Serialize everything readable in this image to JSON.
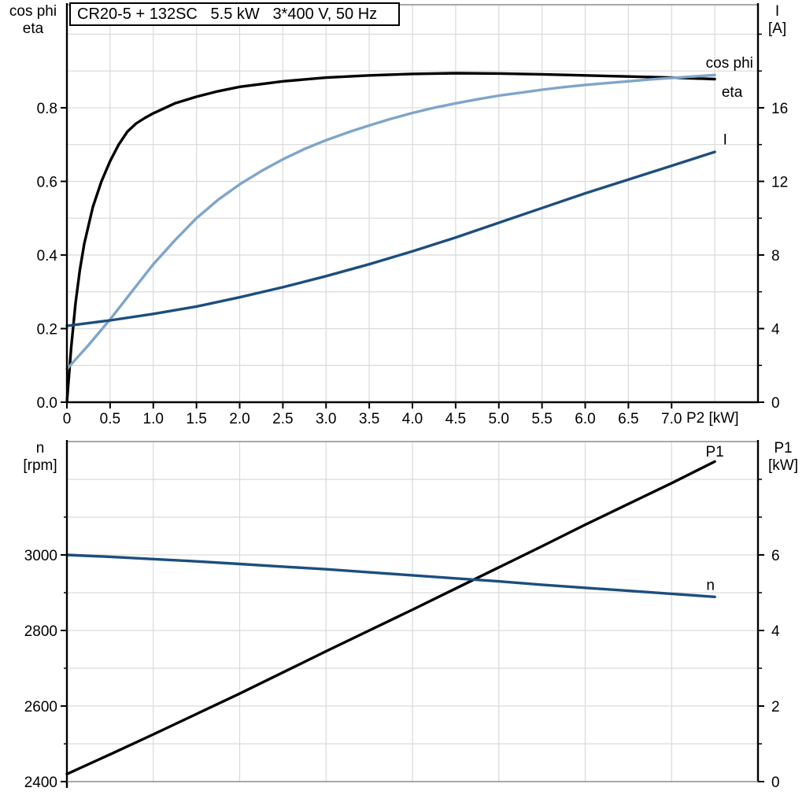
{
  "title_box": "CR20-5 + 132SC   5.5 kW   3*400 V, 50 Hz",
  "colors": {
    "black": "#000000",
    "dark_blue": "#1c4e7d",
    "light_blue": "#7fa5c9",
    "grid": "#d9d9d9",
    "frame": "#8c8c8c"
  },
  "labels": {
    "top_left_1": "cos phi",
    "top_left_2": "eta",
    "top_right_1": "I",
    "top_right_2": "[A]",
    "x_label": "P2 [kW]",
    "bottom_left_1": "n",
    "bottom_left_2": "[rpm]",
    "bottom_right_1": "P1",
    "bottom_right_2": "[kW]"
  },
  "chart_data": [
    {
      "type": "line",
      "name": "motor-efficiency-chart",
      "title": "CR20-5 + 132SC   5.5 kW   3*400 V, 50 Hz",
      "x_axis": {
        "label": "P2 [kW]",
        "min": 0,
        "max": 8,
        "tick_values": [
          0,
          0.5,
          1.0,
          1.5,
          2.0,
          2.5,
          3.0,
          3.5,
          4.0,
          4.5,
          5.0,
          5.5,
          6.0,
          6.5,
          7.0
        ],
        "tick_labels": [
          "0",
          "0.5",
          "1.0",
          "1.5",
          "2.0",
          "2.5",
          "3.0",
          "3.5",
          "4.0",
          "4.5",
          "5.0",
          "5.5",
          "6.0",
          "6.5",
          "7.0"
        ],
        "grid": {
          "from": 0.5,
          "to": 7.5,
          "step": 0.5
        }
      },
      "y_left": {
        "label": "cos phi / eta",
        "min": 0,
        "max": 1.08,
        "tick_values": [
          0.0,
          0.2,
          0.4,
          0.6,
          0.8
        ],
        "tick_labels": [
          "0.0",
          "0.2",
          "0.4",
          "0.6",
          "0.8"
        ],
        "minor_ticks": []
      },
      "y_right": {
        "label": "I [A]",
        "min": 0,
        "max": 21.6,
        "tick_values": [
          0,
          4,
          8,
          12,
          16
        ],
        "tick_labels": [
          "0",
          "4",
          "8",
          "12",
          "16"
        ],
        "minor_ticks": [
          2,
          6,
          10,
          14,
          18,
          20
        ]
      },
      "grid_y": {
        "axis": "left",
        "from": 0.1,
        "to": 1.0,
        "step": 0.1
      },
      "bottom_border": "black",
      "series": [
        {
          "id": "eta",
          "axis": "left",
          "color_key": "black",
          "label": {
            "text": "eta",
            "at": [
              7.7,
              0.845
            ]
          },
          "points": [
            [
              0,
              0
            ],
            [
              0.05,
              0.15
            ],
            [
              0.1,
              0.27
            ],
            [
              0.15,
              0.36
            ],
            [
              0.2,
              0.43
            ],
            [
              0.3,
              0.53
            ],
            [
              0.4,
              0.6
            ],
            [
              0.5,
              0.655
            ],
            [
              0.6,
              0.7
            ],
            [
              0.7,
              0.735
            ],
            [
              0.8,
              0.757
            ],
            [
              0.9,
              0.772
            ],
            [
              1.0,
              0.785
            ],
            [
              1.25,
              0.812
            ],
            [
              1.5,
              0.83
            ],
            [
              1.75,
              0.845
            ],
            [
              2.0,
              0.857
            ],
            [
              2.5,
              0.872
            ],
            [
              3.0,
              0.882
            ],
            [
              3.5,
              0.888
            ],
            [
              4.0,
              0.892
            ],
            [
              4.5,
              0.894
            ],
            [
              5.0,
              0.893
            ],
            [
              5.5,
              0.891
            ],
            [
              6.0,
              0.888
            ],
            [
              6.5,
              0.885
            ],
            [
              7.0,
              0.882
            ],
            [
              7.5,
              0.878
            ]
          ]
        },
        {
          "id": "cos-phi",
          "axis": "left",
          "color_key": "light_blue",
          "label": {
            "text": "cos phi",
            "at": [
              7.67,
              0.924
            ]
          },
          "points": [
            [
              0,
              0.09
            ],
            [
              0.25,
              0.155
            ],
            [
              0.5,
              0.225
            ],
            [
              0.75,
              0.3
            ],
            [
              1.0,
              0.375
            ],
            [
              1.25,
              0.44
            ],
            [
              1.5,
              0.5
            ],
            [
              1.75,
              0.55
            ],
            [
              2.0,
              0.592
            ],
            [
              2.25,
              0.628
            ],
            [
              2.5,
              0.66
            ],
            [
              2.75,
              0.688
            ],
            [
              3.0,
              0.712
            ],
            [
              3.25,
              0.733
            ],
            [
              3.5,
              0.752
            ],
            [
              3.75,
              0.77
            ],
            [
              4.0,
              0.786
            ],
            [
              4.25,
              0.8
            ],
            [
              4.5,
              0.812
            ],
            [
              4.75,
              0.823
            ],
            [
              5.0,
              0.833
            ],
            [
              5.25,
              0.841
            ],
            [
              5.5,
              0.849
            ],
            [
              5.75,
              0.856
            ],
            [
              6.0,
              0.862
            ],
            [
              6.25,
              0.867
            ],
            [
              6.5,
              0.872
            ],
            [
              6.75,
              0.877
            ],
            [
              7.0,
              0.881
            ],
            [
              7.25,
              0.885
            ],
            [
              7.5,
              0.889
            ]
          ]
        },
        {
          "id": "current-I",
          "axis": "right",
          "color_key": "dark_blue",
          "label": {
            "text": "I",
            "at": [
              7.62,
              14.3
            ]
          },
          "points": [
            [
              0,
              4.15
            ],
            [
              0.5,
              4.45
            ],
            [
              1.0,
              4.8
            ],
            [
              1.5,
              5.2
            ],
            [
              2.0,
              5.7
            ],
            [
              2.5,
              6.25
            ],
            [
              3.0,
              6.85
            ],
            [
              3.5,
              7.5
            ],
            [
              4.0,
              8.2
            ],
            [
              4.5,
              8.95
            ],
            [
              5.0,
              9.75
            ],
            [
              5.5,
              10.55
            ],
            [
              6.0,
              11.35
            ],
            [
              6.5,
              12.1
            ],
            [
              7.0,
              12.85
            ],
            [
              7.5,
              13.6
            ]
          ]
        }
      ]
    },
    {
      "type": "line",
      "name": "speed-power-chart",
      "title": "",
      "x_axis": {
        "label": "",
        "min": 0,
        "max": 8,
        "tick_values": [
          0
        ],
        "tick_labels": [
          ""
        ],
        "grid": {
          "from": 1,
          "to": 7,
          "step": 1
        }
      },
      "y_left": {
        "label": "n [rpm]",
        "min": 2400,
        "max": 3300,
        "tick_values": [
          2400,
          2600,
          2800,
          3000
        ],
        "tick_labels": [
          "2400",
          "2600",
          "2800",
          "3000"
        ],
        "minor_ticks": [
          2500,
          2700,
          2900,
          3100
        ]
      },
      "y_right": {
        "label": "P1 [kW]",
        "min": 0,
        "max": 9,
        "tick_values": [
          0,
          2,
          4,
          6
        ],
        "tick_labels": [
          "0",
          "2",
          "4",
          "6"
        ],
        "minor_ticks": [
          1,
          3,
          5,
          7,
          8
        ]
      },
      "grid_y": {
        "axis": "right",
        "from": 1,
        "to": 8,
        "step": 1
      },
      "bottom_border": "gray",
      "series": [
        {
          "id": "power-P1",
          "axis": "right",
          "color_key": "black",
          "label": {
            "text": "P1",
            "at": [
              7.5,
              8.75
            ]
          },
          "points": [
            [
              0,
              0.2
            ],
            [
              0.5,
              0.72
            ],
            [
              1,
              1.25
            ],
            [
              1.5,
              1.79
            ],
            [
              2,
              2.33
            ],
            [
              2.5,
              2.89
            ],
            [
              3,
              3.45
            ],
            [
              3.5,
              4.0
            ],
            [
              4,
              4.55
            ],
            [
              4.5,
              5.11
            ],
            [
              5,
              5.67
            ],
            [
              5.5,
              6.23
            ],
            [
              6,
              6.8
            ],
            [
              6.5,
              7.35
            ],
            [
              7,
              7.9
            ],
            [
              7.5,
              8.47
            ]
          ]
        },
        {
          "id": "speed-n",
          "axis": "left",
          "color_key": "dark_blue",
          "label": {
            "text": "n",
            "at": [
              7.45,
              2922
            ]
          },
          "points": [
            [
              0,
              3000
            ],
            [
              0.5,
              2995
            ],
            [
              1,
              2989
            ],
            [
              1.5,
              2983
            ],
            [
              2,
              2976
            ],
            [
              2.5,
              2969
            ],
            [
              3,
              2962
            ],
            [
              3.5,
              2954
            ],
            [
              4,
              2946
            ],
            [
              4.5,
              2938
            ],
            [
              5,
              2930
            ],
            [
              5.5,
              2921
            ],
            [
              6,
              2913
            ],
            [
              6.5,
              2905
            ],
            [
              7,
              2897
            ],
            [
              7.5,
              2889
            ]
          ]
        }
      ]
    }
  ]
}
